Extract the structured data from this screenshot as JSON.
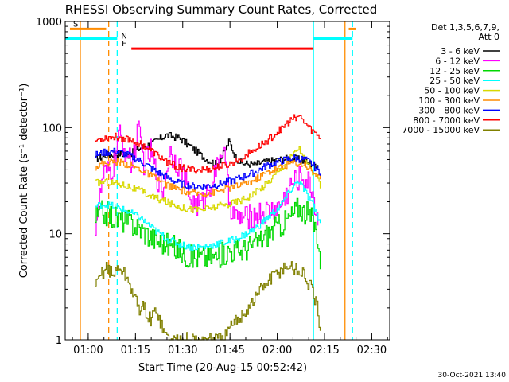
{
  "chart_data": {
    "type": "line",
    "title": "RHESSI Observing Summary Count Rates, Corrected",
    "xlabel": "Start Time (20-Aug-15 00:52:42)",
    "ylabel": "Corrected Count Rate (s⁻¹ detector⁻¹)",
    "yscale": "log",
    "ylim": [
      1,
      1000
    ],
    "xlim_minutes_after_0052": [
      0,
      103
    ],
    "x_ticks": [
      {
        "label": "01:00",
        "minute": 7.3
      },
      {
        "label": "01:15",
        "minute": 22.3
      },
      {
        "label": "01:30",
        "minute": 37.3
      },
      {
        "label": "01:45",
        "minute": 52.3
      },
      {
        "label": "02:00",
        "minute": 67.3
      },
      {
        "label": "02:15",
        "minute": 82.3
      },
      {
        "label": "02:30",
        "minute": 97.3
      }
    ],
    "y_ticks": [
      {
        "label": "1",
        "value": 1
      },
      {
        "label": "10",
        "value": 10
      },
      {
        "label": "100",
        "value": 100
      },
      {
        "label": "1000",
        "value": 1000
      }
    ],
    "legend": {
      "header": [
        "Det 1,3,5,6,7,9,",
        "Att 0"
      ],
      "position": "right"
    },
    "series": [
      {
        "name": "3 - 6 keV",
        "color": "#000000",
        "x": [
          9.5,
          13,
          17,
          20,
          24,
          28,
          32,
          36,
          40,
          44,
          48,
          50,
          52,
          54,
          56,
          60,
          64,
          68,
          72,
          76,
          78,
          80.5
        ],
        "values": [
          50,
          55,
          57,
          55,
          65,
          72,
          85,
          80,
          65,
          52,
          45,
          55,
          75,
          52,
          46,
          45,
          48,
          50,
          52,
          48,
          45,
          45
        ]
      },
      {
        "name": "6 - 12 keV",
        "color": "#ff00ff",
        "x": [
          9.5,
          12,
          15,
          17,
          19,
          21,
          23,
          25,
          27,
          29,
          31,
          33,
          35,
          37,
          40,
          43,
          46,
          48,
          50,
          52,
          54,
          57,
          60,
          64,
          68,
          72,
          75,
          78,
          80.5
        ],
        "values": [
          12,
          35,
          40,
          85,
          60,
          45,
          95,
          45,
          60,
          35,
          25,
          60,
          50,
          40,
          20,
          18,
          30,
          40,
          70,
          20,
          14,
          14,
          15,
          16,
          18,
          30,
          35,
          28,
          12
        ]
      },
      {
        "name": "12 - 25 keV",
        "color": "#00d800",
        "x": [
          9.5,
          12,
          16,
          20,
          24,
          28,
          32,
          36,
          40,
          44,
          48,
          52,
          56,
          60,
          64,
          68,
          72,
          74,
          76,
          78,
          80,
          81
        ],
        "values": [
          14,
          16,
          14,
          13,
          11,
          9,
          8,
          7,
          6,
          6,
          6,
          7,
          7,
          8,
          10,
          12,
          15,
          18,
          16,
          14,
          10,
          5
        ]
      },
      {
        "name": "25 - 50 keV",
        "color": "#00ffff",
        "x": [
          9.5,
          12,
          16,
          20,
          24,
          28,
          32,
          36,
          40,
          44,
          48,
          52,
          56,
          60,
          64,
          68,
          72,
          74,
          76,
          78,
          80,
          81
        ],
        "values": [
          18,
          19,
          18,
          16,
          14,
          11,
          9,
          8,
          7.5,
          7.5,
          8,
          8.5,
          9.5,
          11,
          14,
          18,
          27,
          32,
          25,
          20,
          15,
          12
        ]
      },
      {
        "name": "50 - 100 keV",
        "color": "#d8d800",
        "x": [
          9.5,
          12,
          16,
          20,
          24,
          28,
          32,
          36,
          40,
          44,
          48,
          52,
          56,
          60,
          64,
          68,
          72,
          74,
          76,
          78,
          80,
          81
        ],
        "values": [
          30,
          31,
          30,
          28,
          25,
          22,
          20,
          18,
          17,
          17,
          18,
          19,
          21,
          24,
          30,
          40,
          55,
          65,
          50,
          40,
          32,
          28
        ]
      },
      {
        "name": "100 - 300 keV",
        "color": "#ff8c00",
        "x": [
          9.5,
          12,
          16,
          20,
          24,
          28,
          32,
          36,
          40,
          44,
          48,
          52,
          56,
          60,
          64,
          68,
          72,
          76,
          78,
          80,
          81
        ],
        "values": [
          43,
          46,
          48,
          45,
          40,
          34,
          29,
          26,
          24,
          24,
          25,
          27,
          29,
          32,
          38,
          42,
          47,
          45,
          40,
          35,
          32
        ]
      },
      {
        "name": "300 - 800 keV",
        "color": "#0000ff",
        "x": [
          9.5,
          12,
          16,
          20,
          24,
          28,
          32,
          36,
          40,
          44,
          48,
          52,
          56,
          60,
          64,
          68,
          72,
          76,
          78,
          80,
          81
        ],
        "values": [
          55,
          58,
          60,
          55,
          48,
          40,
          34,
          30,
          28,
          28,
          29,
          31,
          34,
          38,
          44,
          48,
          52,
          50,
          46,
          40,
          38
        ]
      },
      {
        "name": "800 - 7000 keV",
        "color": "#ff0000",
        "x": [
          9.5,
          12,
          16,
          20,
          24,
          28,
          32,
          36,
          40,
          44,
          48,
          52,
          56,
          60,
          64,
          68,
          72,
          74,
          76,
          78,
          80,
          81
        ],
        "values": [
          75,
          80,
          82,
          78,
          70,
          58,
          48,
          42,
          40,
          40,
          42,
          45,
          52,
          62,
          75,
          95,
          120,
          130,
          110,
          95,
          85,
          80
        ]
      },
      {
        "name": "7000 - 15000 keV",
        "color": "#808000",
        "x": [
          9.5,
          11,
          13,
          15,
          17,
          19,
          21,
          23,
          25,
          27,
          29,
          31,
          33,
          35,
          38,
          42,
          46,
          50,
          54,
          58,
          62,
          66,
          70,
          74,
          76,
          78,
          80,
          81
        ],
        "values": [
          3,
          4,
          5,
          4,
          5,
          4,
          3,
          2,
          2,
          1.5,
          2,
          1.2,
          1,
          1,
          1,
          1,
          1,
          1,
          1.5,
          2,
          3,
          4,
          5,
          4.5,
          4,
          3,
          2,
          1
        ]
      }
    ],
    "markers": {
      "vertical_lines": [
        {
          "minute": 4.8,
          "style": "solid",
          "color": "#ff8c00"
        },
        {
          "minute": 13.8,
          "style": "dashed",
          "color": "#ff8c00"
        },
        {
          "minute": 16.5,
          "style": "dashed",
          "color": "#00ffff"
        },
        {
          "minute": 78.8,
          "style": "solid",
          "color": "#00ffff"
        },
        {
          "minute": 88.8,
          "style": "solid",
          "color": "#ff8c00"
        },
        {
          "minute": 91.2,
          "style": "dashed",
          "color": "#00ffff"
        }
      ],
      "flag_bars": [
        {
          "label": "S",
          "color": "#ff8c00",
          "value": 850,
          "segments": [
            [
              1.5,
              13.0
            ],
            [
              90.0,
              92.3
            ]
          ]
        },
        {
          "label": "N",
          "color": "#00ffff",
          "value": 690,
          "segments": [
            [
              0,
              16.5
            ],
            [
              78.8,
              91.2
            ]
          ]
        },
        {
          "label": "F",
          "color": "#ff0000",
          "value": 555,
          "segments": [
            [
              21.0,
              78.8
            ]
          ]
        }
      ]
    }
  },
  "footer": {
    "timestamp": "30-Oct-2021 13:40"
  }
}
